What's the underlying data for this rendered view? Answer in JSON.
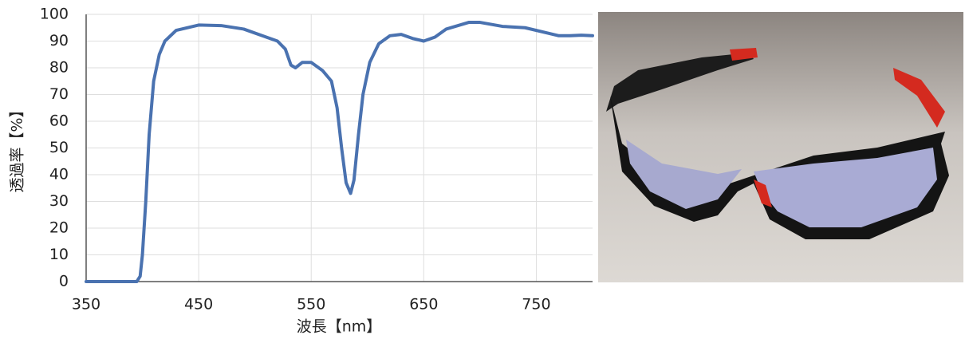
{
  "chart_data": {
    "type": "line",
    "x": [
      350,
      395,
      398,
      400,
      403,
      406,
      410,
      415,
      420,
      430,
      450,
      470,
      490,
      510,
      520,
      527,
      532,
      536,
      542,
      550,
      560,
      568,
      573,
      577,
      581,
      585,
      588,
      592,
      596,
      602,
      610,
      620,
      630,
      640,
      650,
      660,
      670,
      690,
      700,
      720,
      740,
      760,
      770,
      780,
      790,
      800
    ],
    "values": [
      0,
      0,
      2,
      10,
      30,
      55,
      75,
      85,
      90,
      94,
      96,
      95.8,
      94.5,
      91.5,
      90,
      87,
      81,
      80,
      82,
      82,
      79,
      75,
      65,
      50,
      37,
      33,
      38,
      55,
      70,
      82,
      89,
      92,
      92.5,
      91,
      90,
      91.5,
      94.5,
      97,
      97,
      95.5,
      95,
      93,
      92,
      92,
      92.2,
      92
    ],
    "color": "#4a72b0",
    "xlim": [
      350,
      800
    ],
    "ylim": [
      0,
      100
    ],
    "xticks": [
      350,
      450,
      550,
      650,
      750
    ],
    "yticks": [
      0,
      10,
      20,
      30,
      40,
      50,
      60,
      70,
      80,
      90,
      100
    ],
    "xlabel": "波長【nm】",
    "ylabel": "透過率【%】",
    "grid": true
  }
}
